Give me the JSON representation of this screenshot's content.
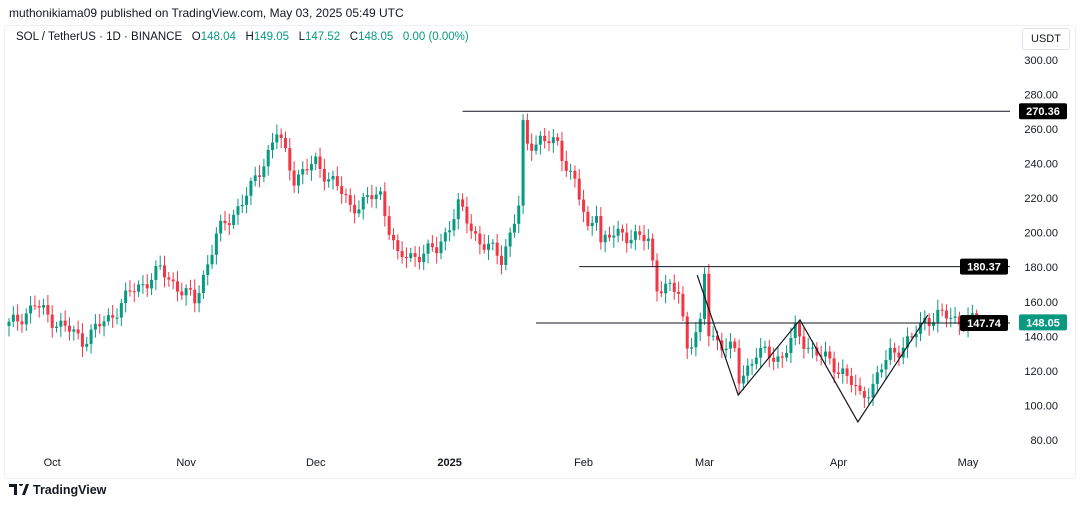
{
  "published": "muthonikiama09 published on TradingView.com, May 03, 2025 05:49 UTC",
  "legend": {
    "symbol": "SOL / TetherUS · 1D · BINANCE",
    "o_label": "O",
    "o": "148.04",
    "h_label": "H",
    "h": "149.05",
    "l_label": "L",
    "l": "147.52",
    "c_label": "C",
    "c": "148.05",
    "change": "0.00 (0.00%)"
  },
  "currency": "USDT",
  "footer": {
    "brand": "TradingView"
  },
  "colors": {
    "up": "#089981",
    "down": "#f23645",
    "line": "#131722"
  },
  "chart_data": {
    "type": "candlestick",
    "title": "SOL / TetherUS · 1D · BINANCE",
    "ylim": [
      80,
      300
    ],
    "y_ticks": [
      "80.00",
      "100.00",
      "120.00",
      "140.00",
      "160.00",
      "180.00",
      "200.00",
      "220.00",
      "240.00",
      "260.00",
      "280.00",
      "300.00"
    ],
    "x_ticks": [
      {
        "day": 10,
        "label": "Oct"
      },
      {
        "day": 41,
        "label": "Nov"
      },
      {
        "day": 71,
        "label": "Dec"
      },
      {
        "day": 102,
        "label": "2025"
      },
      {
        "day": 133,
        "label": "Feb"
      },
      {
        "day": 161,
        "label": "Mar"
      },
      {
        "day": 192,
        "label": "Apr"
      },
      {
        "day": 222,
        "label": "May"
      }
    ],
    "x_unit": "days since Sep 21 2024",
    "close_keypoints": [
      [
        0,
        146
      ],
      [
        6,
        158
      ],
      [
        10,
        150
      ],
      [
        17,
        138
      ],
      [
        23,
        150
      ],
      [
        28,
        165
      ],
      [
        35,
        178
      ],
      [
        43,
        160
      ],
      [
        48,
        198
      ],
      [
        56,
        225
      ],
      [
        62,
        258
      ],
      [
        66,
        232
      ],
      [
        71,
        240
      ],
      [
        75,
        230
      ],
      [
        79,
        215
      ],
      [
        86,
        222
      ],
      [
        90,
        185
      ],
      [
        99,
        190
      ],
      [
        104,
        215
      ],
      [
        109,
        195
      ],
      [
        114,
        185
      ],
      [
        118,
        215
      ],
      [
        119,
        260
      ],
      [
        120,
        250
      ],
      [
        123,
        255
      ],
      [
        127,
        250
      ],
      [
        131,
        230
      ],
      [
        134,
        200
      ],
      [
        136,
        215
      ],
      [
        137,
        195
      ],
      [
        142,
        200
      ],
      [
        148,
        195
      ],
      [
        150,
        170
      ],
      [
        155,
        165
      ],
      [
        157,
        135
      ],
      [
        160,
        145
      ],
      [
        161,
        175
      ],
      [
        162,
        142
      ],
      [
        168,
        130
      ],
      [
        169,
        115
      ],
      [
        173,
        130
      ],
      [
        179,
        128
      ],
      [
        182,
        142
      ],
      [
        187,
        130
      ],
      [
        193,
        120
      ],
      [
        197,
        105
      ],
      [
        200,
        112
      ],
      [
        204,
        130
      ],
      [
        209,
        138
      ],
      [
        212,
        150
      ],
      [
        215,
        152
      ],
      [
        224,
        148
      ]
    ],
    "levels": [
      {
        "price": 270.36,
        "label": "270.36",
        "from_day": 105
      },
      {
        "price": 180.37,
        "label": "180.37",
        "from_day": 132
      },
      {
        "price": 147.74,
        "label": "147.74",
        "from_day": 122
      }
    ],
    "last_price": {
      "price": 148.05,
      "label": "148.05"
    },
    "pattern_line": [
      [
        159.3,
        175.5
      ],
      [
        168.8,
        106
      ],
      [
        183.1,
        149.5
      ],
      [
        196.5,
        90.4
      ],
      [
        212.7,
        152.3
      ]
    ]
  }
}
